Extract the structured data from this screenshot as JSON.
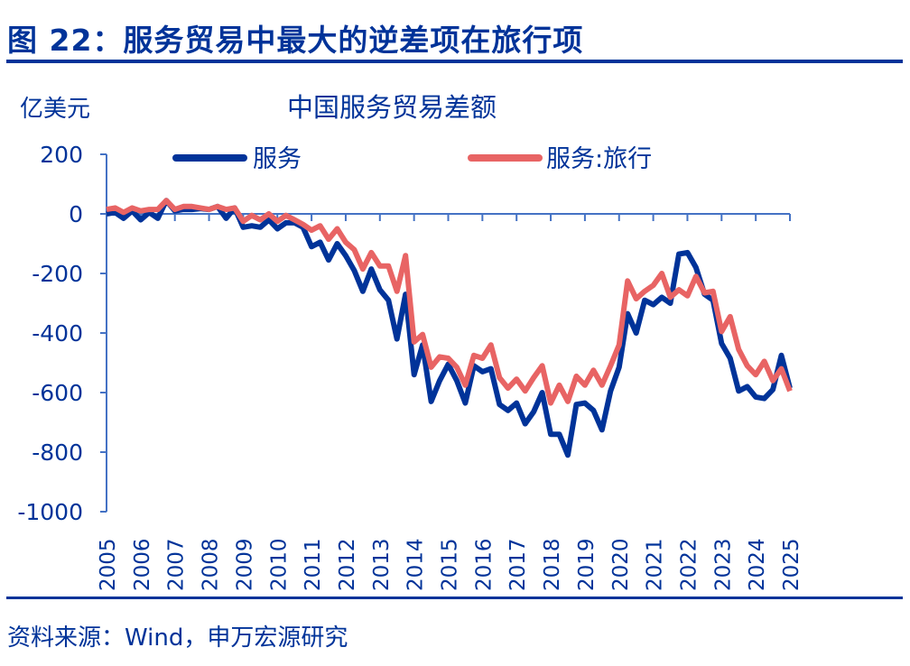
{
  "figure_title": "图 22：服务贸易中最大的逆差项在旅行项",
  "source": "资料来源：Wind，申万宏源研究",
  "colors": {
    "text": "#003399",
    "axis": "#4472C4",
    "services": "#003399",
    "travel": "#E86464"
  },
  "chart_data": {
    "type": "line",
    "title": "中国服务贸易差额",
    "ylabel": "亿美元",
    "xlabel": "",
    "ylim": [
      -1000,
      200
    ],
    "yticks": [
      200,
      0,
      -200,
      -400,
      -600,
      -800,
      -1000
    ],
    "xticks": [
      "2005",
      "2006",
      "2007",
      "2008",
      "2009",
      "2010",
      "2011",
      "2012",
      "2013",
      "2014",
      "2015",
      "2016",
      "2017",
      "2018",
      "2019",
      "2020",
      "2021",
      "2022",
      "2023",
      "2024",
      "2025"
    ],
    "legend_position": "top",
    "grid": false,
    "x_start": "2005Q1",
    "x_frequency": "quarterly",
    "series": [
      {
        "name": "服务",
        "color": "#003399",
        "values": [
          0,
          5,
          -15,
          10,
          -20,
          5,
          -15,
          45,
          10,
          15,
          15,
          18,
          15,
          25,
          -15,
          20,
          -45,
          -40,
          -45,
          -20,
          -50,
          -30,
          -30,
          -45,
          -110,
          -95,
          -155,
          -100,
          -140,
          -190,
          -260,
          -185,
          -255,
          -290,
          -420,
          -270,
          -540,
          -440,
          -630,
          -560,
          -505,
          -560,
          -635,
          -510,
          -530,
          -520,
          -640,
          -660,
          -635,
          -705,
          -665,
          -600,
          -740,
          -740,
          -810,
          -640,
          -635,
          -660,
          -725,
          -595,
          -515,
          -335,
          -400,
          -290,
          -305,
          -280,
          -300,
          -135,
          -130,
          -180,
          -270,
          -290,
          -435,
          -485,
          -595,
          -580,
          -615,
          -620,
          -590,
          -475,
          -585
        ]
      },
      {
        "name": "服务:旅行",
        "color": "#E86464",
        "values": [
          15,
          20,
          5,
          20,
          10,
          15,
          15,
          45,
          15,
          25,
          25,
          20,
          15,
          25,
          15,
          20,
          -25,
          -5,
          -20,
          0,
          -25,
          -5,
          -20,
          -35,
          -55,
          -40,
          -85,
          -50,
          -95,
          -120,
          -185,
          -130,
          -175,
          -175,
          -260,
          -140,
          -430,
          -405,
          -515,
          -480,
          -485,
          -515,
          -575,
          -475,
          -485,
          -440,
          -550,
          -585,
          -555,
          -595,
          -550,
          -510,
          -635,
          -575,
          -630,
          -545,
          -575,
          -525,
          -575,
          -510,
          -440,
          -225,
          -285,
          -260,
          -240,
          -200,
          -280,
          -255,
          -275,
          -210,
          -265,
          -260,
          -395,
          -345,
          -455,
          -510,
          -540,
          -495,
          -560,
          -520,
          -595
        ]
      }
    ]
  }
}
